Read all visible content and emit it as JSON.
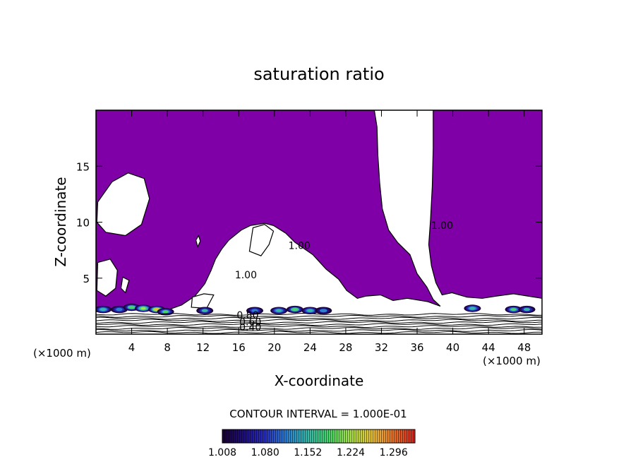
{
  "chart_data": {
    "type": "heatmap",
    "title": "saturation ratio",
    "xlabel": "X-coordinate",
    "ylabel": "Z-coordinate",
    "x_unit_left": "(×1000 m)",
    "x_unit_right": "(×1000 m)",
    "xlim": [
      0,
      50
    ],
    "ylim": [
      0,
      20
    ],
    "xticks": [
      4,
      8,
      12,
      16,
      20,
      24,
      28,
      32,
      36,
      40,
      44,
      48
    ],
    "yticks": [
      5,
      10,
      15
    ],
    "contour_interval_text": "CONTOUR INTERVAL = 1.000E-01",
    "contour_labels": [
      {
        "text": "1.00",
        "x": 38.8,
        "z": 9.4
      },
      {
        "text": "1.00",
        "x": 22.8,
        "z": 7.6
      },
      {
        "text": "1.00",
        "x": 16.8,
        "z": 5.0
      },
      {
        "text": "0.80",
        "x": 17.0,
        "z": 1.4
      },
      {
        "text": "0.60",
        "x": 17.3,
        "z": 0.8
      },
      {
        "text": "0.40",
        "x": 17.3,
        "z": 0.3
      }
    ],
    "colorbar": {
      "min": 1.008,
      "max": 1.332,
      "tick_labels": [
        "1.008",
        "1.080",
        "1.152",
        "1.224",
        "1.296"
      ],
      "colors": [
        "#1a0033",
        "#1f0f7a",
        "#2a2fb8",
        "#2f7fd0",
        "#37b7a8",
        "#4bd36a",
        "#a8e04a",
        "#e8c13a",
        "#e6732c",
        "#cf2a24"
      ]
    },
    "fill_color": "#7f00a7",
    "supersaturated_regions": [
      [
        [
          0,
          20
        ],
        [
          31.2,
          20
        ],
        [
          31.5,
          18.5
        ],
        [
          31.6,
          16
        ],
        [
          31.8,
          13.5
        ],
        [
          32.1,
          11.2
        ],
        [
          32.8,
          9.3
        ],
        [
          33.8,
          8.2
        ],
        [
          35.2,
          7.1
        ],
        [
          36.0,
          5.4
        ],
        [
          37.1,
          4.2
        ],
        [
          37.8,
          3.1
        ],
        [
          38.6,
          2.5
        ],
        [
          37.2,
          2.9
        ],
        [
          34.9,
          3.2
        ],
        [
          33.3,
          3.0
        ],
        [
          31.9,
          3.5
        ],
        [
          30.3,
          3.4
        ],
        [
          29.3,
          3.2
        ],
        [
          28.1,
          3.9
        ],
        [
          27.2,
          4.9
        ],
        [
          25.8,
          5.8
        ],
        [
          24.3,
          7.1
        ],
        [
          22.3,
          8.2
        ],
        [
          21.3,
          9.0
        ],
        [
          19.9,
          9.7
        ],
        [
          18.9,
          9.9
        ],
        [
          17.3,
          9.7
        ],
        [
          16.3,
          9.3
        ],
        [
          14.9,
          8.4
        ],
        [
          14.1,
          7.6
        ],
        [
          13.4,
          6.7
        ],
        [
          12.9,
          5.7
        ],
        [
          12.2,
          4.5
        ],
        [
          11.1,
          3.4
        ],
        [
          9.6,
          2.6
        ],
        [
          8.2,
          2.2
        ],
        [
          6.2,
          2.3
        ],
        [
          4.2,
          2.5
        ],
        [
          2.0,
          2.2
        ],
        [
          0,
          2.0
        ]
      ],
      [
        [
          37.8,
          20
        ],
        [
          50,
          20
        ],
        [
          50,
          3.2
        ],
        [
          48.4,
          3.4
        ],
        [
          46.8,
          3.6
        ],
        [
          44.9,
          3.4
        ],
        [
          43.3,
          3.2
        ],
        [
          41.6,
          3.3
        ],
        [
          39.9,
          3.7
        ],
        [
          38.8,
          3.5
        ],
        [
          38.1,
          4.6
        ],
        [
          37.6,
          6.1
        ],
        [
          37.3,
          8.0
        ],
        [
          37.5,
          10.2
        ],
        [
          37.7,
          13.2
        ],
        [
          37.8,
          16.6
        ]
      ]
    ],
    "unsaturated_holes": [
      [
        [
          0.2,
          11.8
        ],
        [
          1.8,
          13.6
        ],
        [
          3.6,
          14.4
        ],
        [
          5.4,
          13.9
        ],
        [
          6.0,
          12.1
        ],
        [
          5.1,
          9.8
        ],
        [
          3.3,
          8.8
        ],
        [
          1.1,
          9.1
        ],
        [
          0.1,
          10.0
        ]
      ],
      [
        [
          0.2,
          6.4
        ],
        [
          1.6,
          6.7
        ],
        [
          2.4,
          5.7
        ],
        [
          2.2,
          4.1
        ],
        [
          1.1,
          3.4
        ],
        [
          0.1,
          3.9
        ]
      ],
      [
        [
          3.0,
          5.1
        ],
        [
          3.7,
          4.8
        ],
        [
          3.3,
          3.7
        ],
        [
          2.8,
          4.1
        ]
      ],
      [
        [
          10.8,
          3.3
        ],
        [
          12.1,
          3.6
        ],
        [
          13.2,
          3.5
        ],
        [
          12.4,
          2.3
        ],
        [
          10.7,
          2.4
        ]
      ],
      [
        [
          17.2,
          7.4
        ],
        [
          18.5,
          7.0
        ],
        [
          19.4,
          8.0
        ],
        [
          19.9,
          9.2
        ],
        [
          18.9,
          9.8
        ],
        [
          17.6,
          9.5
        ]
      ],
      [
        [
          11.2,
          8.4
        ],
        [
          11.5,
          8.8
        ],
        [
          11.7,
          8.3
        ],
        [
          11.4,
          7.8
        ]
      ]
    ],
    "hotspots": [
      {
        "x": 0.8,
        "z": 2.2,
        "level": 0.45
      },
      {
        "x": 2.6,
        "z": 2.2,
        "level": 0.35
      },
      {
        "x": 4.0,
        "z": 2.4,
        "level": 0.55
      },
      {
        "x": 5.3,
        "z": 2.3,
        "level": 0.7
      },
      {
        "x": 6.8,
        "z": 2.2,
        "level": 0.75
      },
      {
        "x": 7.8,
        "z": 2.0,
        "level": 0.5
      },
      {
        "x": 12.2,
        "z": 2.1,
        "level": 0.4
      },
      {
        "x": 17.8,
        "z": 2.1,
        "level": 0.35
      },
      {
        "x": 20.5,
        "z": 2.1,
        "level": 0.45
      },
      {
        "x": 22.3,
        "z": 2.2,
        "level": 0.55
      },
      {
        "x": 24.0,
        "z": 2.1,
        "level": 0.45
      },
      {
        "x": 25.5,
        "z": 2.1,
        "level": 0.3
      },
      {
        "x": 42.2,
        "z": 2.3,
        "level": 0.45
      },
      {
        "x": 46.8,
        "z": 2.2,
        "level": 0.5
      },
      {
        "x": 48.3,
        "z": 2.2,
        "level": 0.4
      }
    ]
  }
}
